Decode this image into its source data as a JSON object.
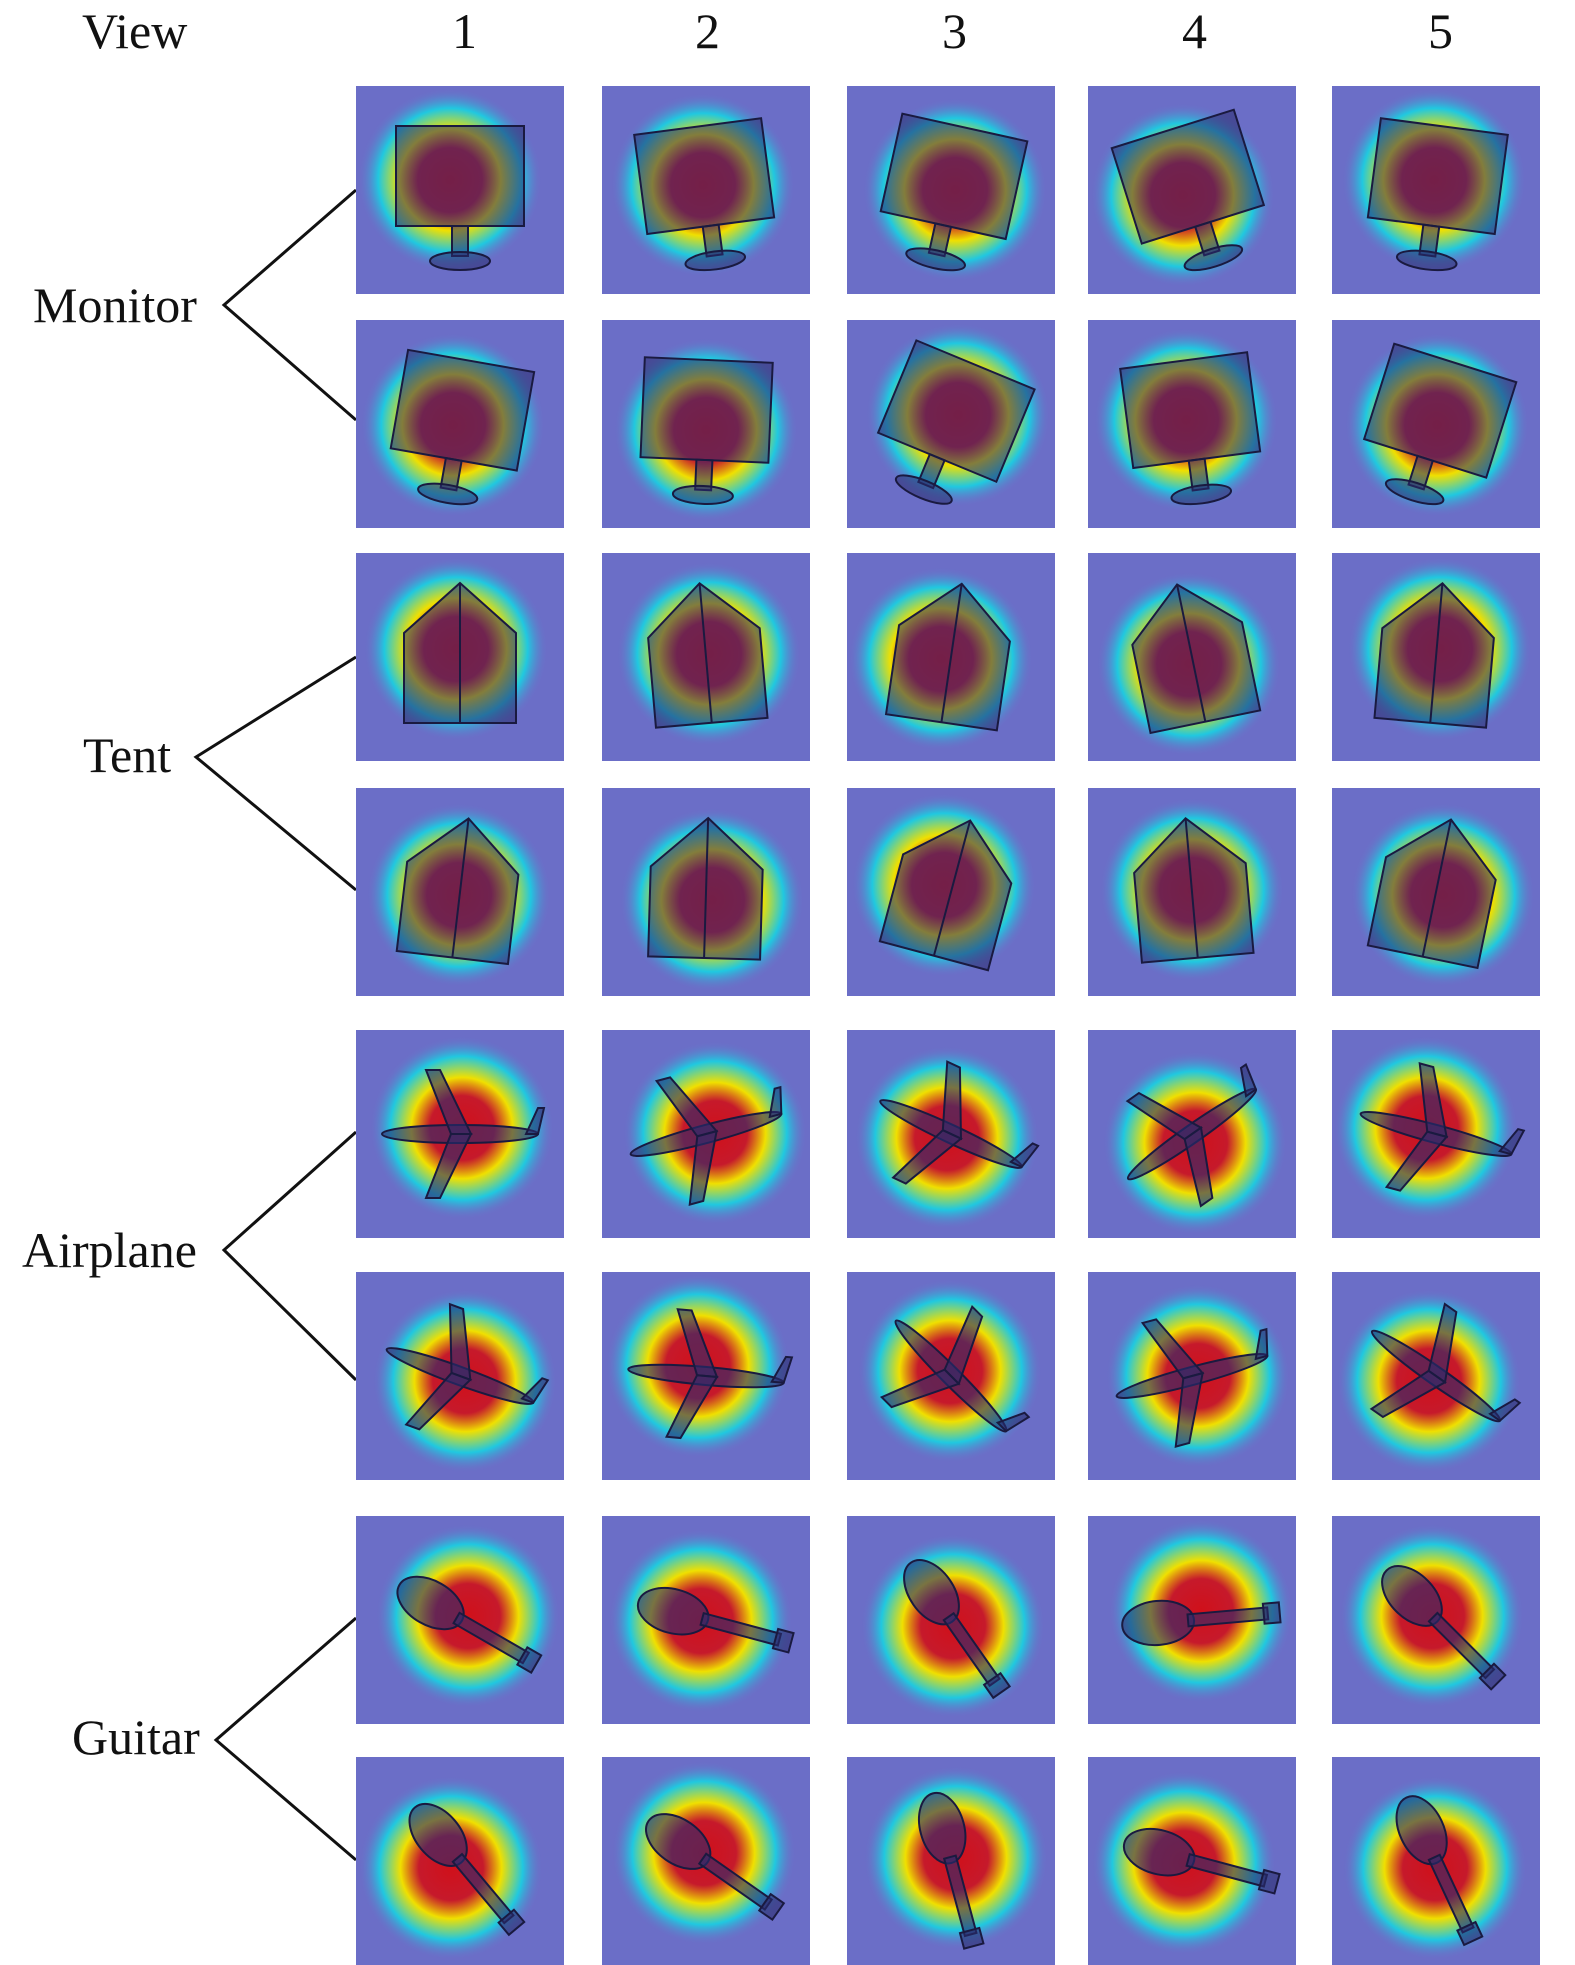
{
  "header": {
    "view_label": "View",
    "columns": [
      "1",
      "2",
      "3",
      "4",
      "5"
    ]
  },
  "groups": [
    {
      "label": "Monitor",
      "shape": "monitor"
    },
    {
      "label": "Tent",
      "shape": "tent"
    },
    {
      "label": "Airplane",
      "shape": "airplane"
    },
    {
      "label": "Guitar",
      "shape": "guitar"
    }
  ],
  "colors": {
    "background_tile": "#6b6ec7",
    "heat_hot": "#d0101a",
    "heat_warm": "#f0e000",
    "heat_cool": "#20c8e0",
    "connector": "#111111"
  }
}
